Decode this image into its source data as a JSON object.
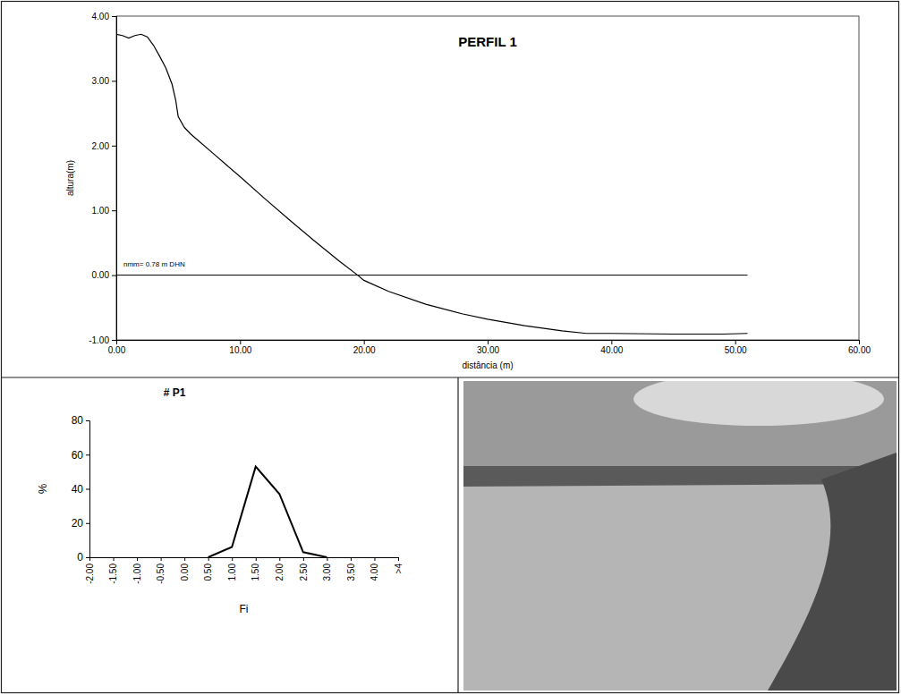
{
  "chart_data": [
    {
      "type": "line",
      "title": "PERFIL 1",
      "x_label": "distância (m)",
      "y_label": "altura(m)",
      "x": [
        0,
        0.5,
        1,
        1.5,
        2,
        2.5,
        3,
        3.5,
        4,
        4.5,
        4.8,
        5,
        5.5,
        6,
        8,
        10,
        12,
        14,
        16,
        18,
        19.5,
        20,
        22,
        25,
        28,
        30,
        33,
        36,
        38,
        40,
        45,
        49,
        51
      ],
      "values": [
        3.72,
        3.7,
        3.66,
        3.7,
        3.72,
        3.68,
        3.55,
        3.38,
        3.2,
        2.95,
        2.7,
        2.45,
        2.28,
        2.18,
        1.85,
        1.52,
        1.18,
        0.85,
        0.53,
        0.22,
        0.0,
        -0.08,
        -0.25,
        -0.45,
        -0.6,
        -0.68,
        -0.78,
        -0.86,
        -0.9,
        -0.9,
        -0.91,
        -0.91,
        -0.9
      ],
      "color": "#000000",
      "xlim": [
        0,
        60
      ],
      "xticks": [
        {
          "value": 0,
          "label": "0.00"
        },
        {
          "value": 10,
          "label": "10.00"
        },
        {
          "value": 20,
          "label": "20.00"
        },
        {
          "value": 30,
          "label": "30.00"
        },
        {
          "value": 40,
          "label": "40.00"
        },
        {
          "value": 50,
          "label": "50.00"
        },
        {
          "value": 60,
          "label": "60.00"
        }
      ],
      "ylim": [
        -1,
        4
      ],
      "yticks": [
        {
          "value": -1,
          "label": "-1.00"
        },
        {
          "value": 0,
          "label": "0.00"
        },
        {
          "value": 1,
          "label": "1.00"
        },
        {
          "value": 2,
          "label": "2.00"
        },
        {
          "value": 3,
          "label": "3.00"
        },
        {
          "value": 4,
          "label": "4.00"
        }
      ],
      "annotations": [
        {
          "text": "nmm= 0.78 m DHN",
          "x": [
            0,
            51
          ],
          "y": 0
        }
      ],
      "grid": false
    },
    {
      "type": "line",
      "title": "# P1",
      "x_label": "Fi",
      "y_label": "%",
      "categories": [
        "-2.00",
        "-1.50",
        "-1.00",
        "-0.50",
        "0.00",
        "0.50",
        "1.00",
        "1.50",
        "2.00",
        "2.50",
        "3.00",
        "3.50",
        "4.00",
        ">4"
      ],
      "values": [
        null,
        null,
        null,
        null,
        null,
        0,
        6,
        53,
        37,
        3,
        0,
        null,
        null,
        null
      ],
      "color": "#000000",
      "ylim": [
        0,
        80
      ],
      "yticks": [
        0,
        20,
        40,
        60,
        80
      ],
      "grid": false
    }
  ]
}
